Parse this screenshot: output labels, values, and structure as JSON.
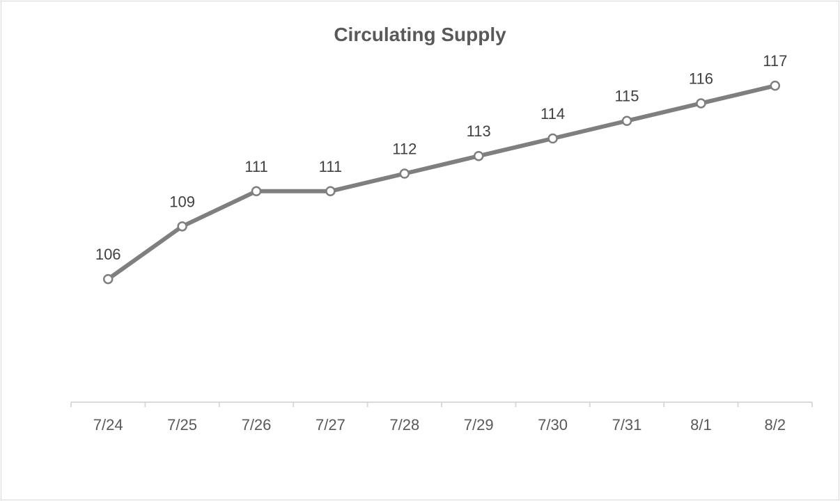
{
  "chart_data": {
    "type": "line",
    "title": "Circulating Supply",
    "xlabel": "",
    "ylabel": "",
    "categories": [
      "7/24",
      "7/25",
      "7/26",
      "7/27",
      "7/28",
      "7/29",
      "7/30",
      "7/31",
      "8/1",
      "8/2"
    ],
    "series": [
      {
        "values": [
          106,
          109,
          111,
          111,
          112,
          113,
          114,
          115,
          116,
          117
        ]
      }
    ],
    "data_labels": [
      "106",
      "109",
      "111",
      "111",
      "112",
      "113",
      "114",
      "115",
      "116",
      "117"
    ],
    "ylim": [
      99,
      119.5
    ],
    "grid": false,
    "legend": "none",
    "colors": {
      "line": "#7f7f7f",
      "marker_fill": "#ffffff",
      "axis": "#d9d9d9",
      "text": "#595959"
    }
  }
}
